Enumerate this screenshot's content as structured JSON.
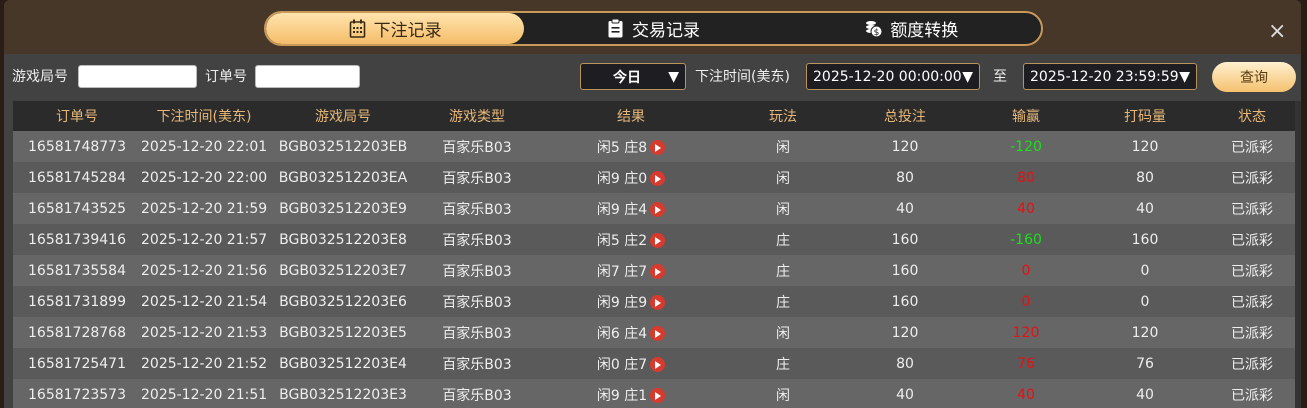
{
  "tabs": [
    {
      "label": "下注记录",
      "icon": "calendar-icon",
      "active": true
    },
    {
      "label": "交易记录",
      "icon": "clipboard-icon",
      "active": false
    },
    {
      "label": "额度转换",
      "icon": "coins-icon",
      "active": false
    }
  ],
  "close_label": "×",
  "filters": {
    "round_label": "游戏局号",
    "round_value": "",
    "order_label": "订单号",
    "order_value": "",
    "range_select": "今日",
    "time_label": "下注时间(美东)",
    "start": "2025-12-20 00:00:00",
    "to_label": "至",
    "end": "2025-12-20 23:59:59",
    "query_label": "查询"
  },
  "columns": [
    "订单号",
    "下注时间(美东)",
    "游戏局号",
    "游戏类型",
    "结果",
    "玩法",
    "总投注",
    "输赢",
    "打码量",
    "状态"
  ],
  "colors": {
    "win": "#19e019",
    "loss": "#e81010",
    "accent": "#e6b778"
  },
  "rows": [
    [
      "16581748773",
      "2025-12-20 22:01",
      "BGB032512203EB",
      "百家乐B03",
      "闲5 庄8",
      "闲",
      "120",
      "-120",
      "120",
      "已派彩"
    ],
    [
      "16581745284",
      "2025-12-20 22:00",
      "BGB032512203EA",
      "百家乐B03",
      "闲9 庄0",
      "闲",
      "80",
      "80",
      "80",
      "已派彩"
    ],
    [
      "16581743525",
      "2025-12-20 21:59",
      "BGB032512203E9",
      "百家乐B03",
      "闲9 庄4",
      "闲",
      "40",
      "40",
      "40",
      "已派彩"
    ],
    [
      "16581739416",
      "2025-12-20 21:57",
      "BGB032512203E8",
      "百家乐B03",
      "闲5 庄2",
      "庄",
      "160",
      "-160",
      "160",
      "已派彩"
    ],
    [
      "16581735584",
      "2025-12-20 21:56",
      "BGB032512203E7",
      "百家乐B03",
      "闲7 庄7",
      "庄",
      "160",
      "0",
      "0",
      "已派彩"
    ],
    [
      "16581731899",
      "2025-12-20 21:54",
      "BGB032512203E6",
      "百家乐B03",
      "闲9 庄9",
      "庄",
      "160",
      "0",
      "0",
      "已派彩"
    ],
    [
      "16581728768",
      "2025-12-20 21:53",
      "BGB032512203E5",
      "百家乐B03",
      "闲6 庄4",
      "闲",
      "120",
      "120",
      "120",
      "已派彩"
    ],
    [
      "16581725471",
      "2025-12-20 21:52",
      "BGB032512203E4",
      "百家乐B03",
      "闲0 庄7",
      "庄",
      "80",
      "76",
      "76",
      "已派彩"
    ],
    [
      "16581723573",
      "2025-12-20 21:51",
      "BGB032512203E3",
      "百家乐B03",
      "闲9 庄1",
      "闲",
      "40",
      "40",
      "40",
      "已派彩"
    ]
  ]
}
